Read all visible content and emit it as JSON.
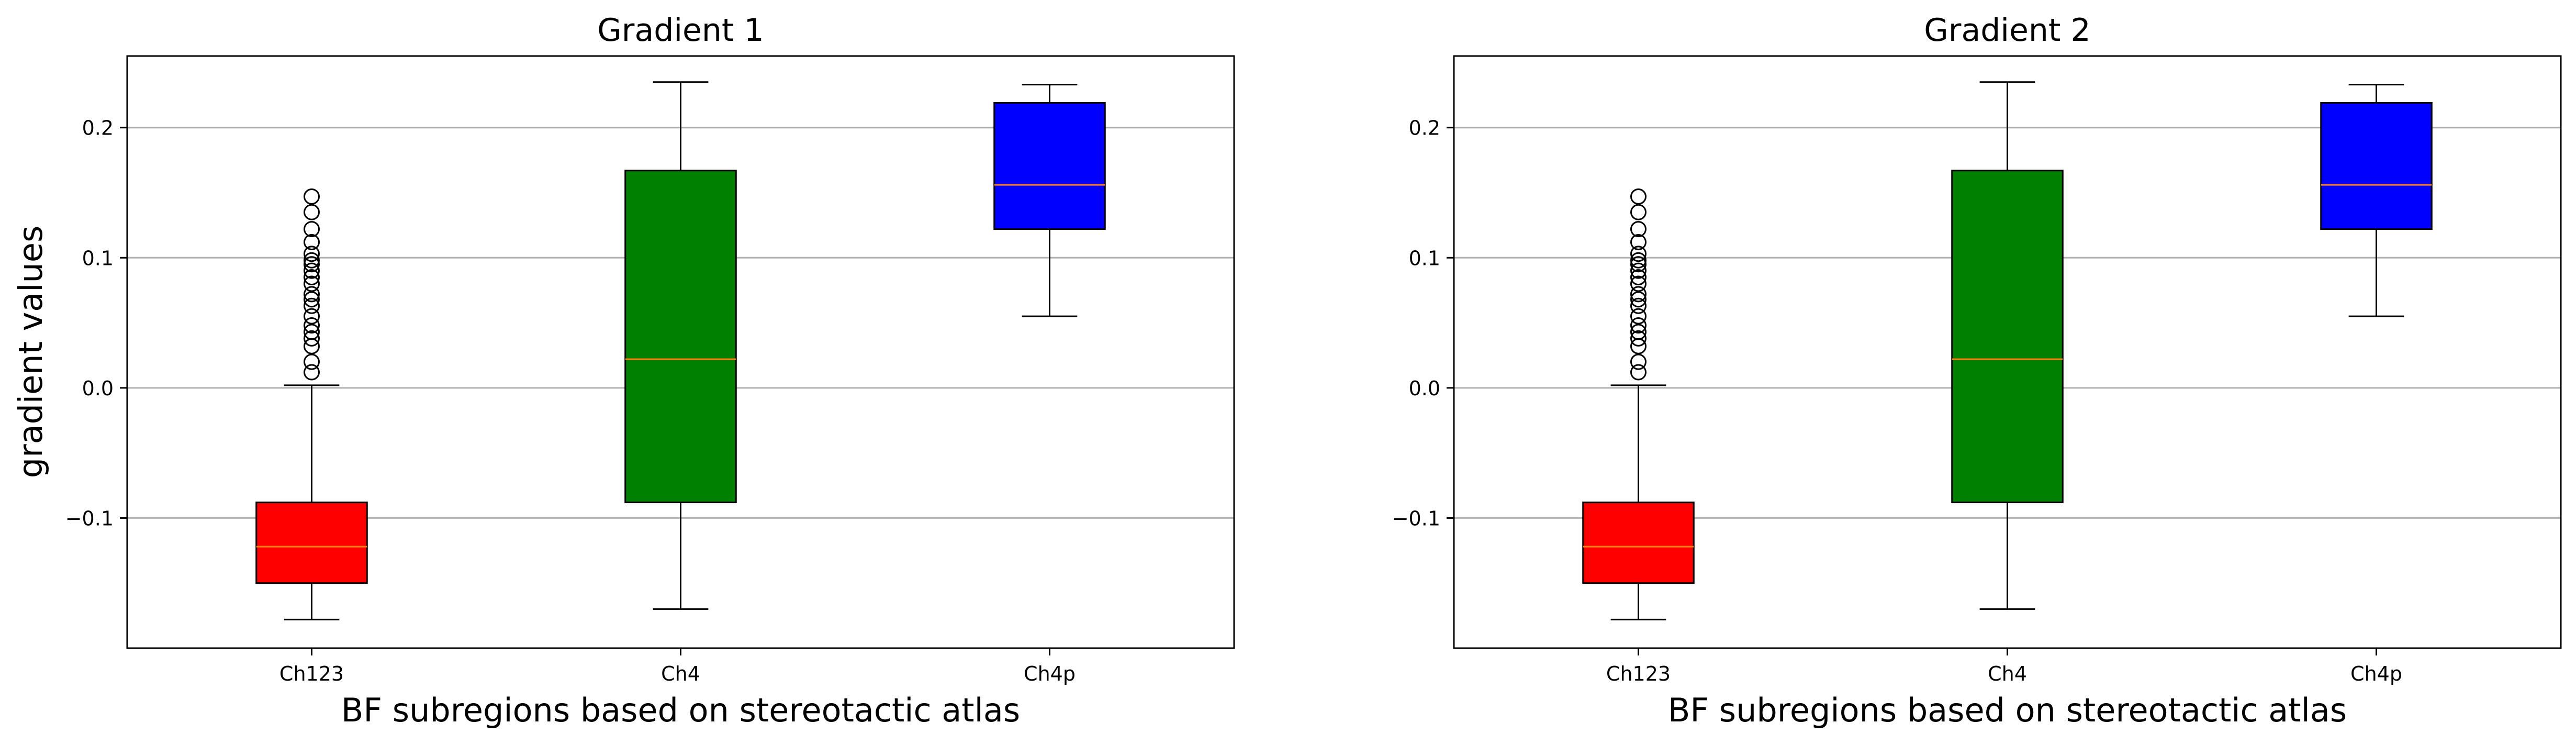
{
  "ylabel": "gradient values",
  "chart_data": [
    {
      "type": "box",
      "title": "Gradient 1",
      "xlabel": "BF subregions based on stereotactic atlas",
      "ylabel": "gradient values",
      "categories": [
        "Ch123",
        "Ch4",
        "Ch4p"
      ],
      "ylim": [
        -0.2,
        0.255
      ],
      "yticks": [
        -0.1,
        0.0,
        0.1,
        0.2
      ],
      "ytick_labels": [
        "−0.1",
        "0.0",
        "0.1",
        "0.2"
      ],
      "grid": "y",
      "boxes": [
        {
          "label": "Ch123",
          "color": "#ff0000",
          "whisker_low": -0.178,
          "q1": -0.15,
          "median": -0.122,
          "q3": -0.088,
          "whisker_high": 0.002,
          "outliers": [
            0.012,
            0.02,
            0.032,
            0.038,
            0.043,
            0.048,
            0.055,
            0.063,
            0.068,
            0.072,
            0.08,
            0.085,
            0.09,
            0.095,
            0.098,
            0.103,
            0.112,
            0.122,
            0.135,
            0.147
          ]
        },
        {
          "label": "Ch4",
          "color": "#008000",
          "whisker_low": -0.17,
          "q1": -0.088,
          "median": 0.022,
          "q3": 0.167,
          "whisker_high": 0.235,
          "outliers": []
        },
        {
          "label": "Ch4p",
          "color": "#0000ff",
          "whisker_low": 0.055,
          "q1": 0.122,
          "median": 0.156,
          "q3": 0.219,
          "whisker_high": 0.233,
          "outliers": []
        }
      ]
    },
    {
      "type": "box",
      "title": "Gradient 2",
      "xlabel": "BF subregions based on stereotactic atlas",
      "ylabel": "",
      "categories": [
        "Ch123",
        "Ch4",
        "Ch4p"
      ],
      "ylim": [
        -0.2,
        0.255
      ],
      "yticks": [
        -0.1,
        0.0,
        0.1,
        0.2
      ],
      "ytick_labels": [
        "−0.1",
        "0.0",
        "0.1",
        "0.2"
      ],
      "grid": "y",
      "boxes": [
        {
          "label": "Ch123",
          "color": "#ff0000",
          "whisker_low": -0.178,
          "q1": -0.15,
          "median": -0.122,
          "q3": -0.088,
          "whisker_high": 0.002,
          "outliers": [
            0.012,
            0.02,
            0.032,
            0.038,
            0.043,
            0.048,
            0.055,
            0.063,
            0.068,
            0.072,
            0.08,
            0.085,
            0.09,
            0.095,
            0.098,
            0.103,
            0.112,
            0.122,
            0.135,
            0.147
          ]
        },
        {
          "label": "Ch4",
          "color": "#008000",
          "whisker_low": -0.17,
          "q1": -0.088,
          "median": 0.022,
          "q3": 0.167,
          "whisker_high": 0.235,
          "outliers": []
        },
        {
          "label": "Ch4p",
          "color": "#0000ff",
          "whisker_low": 0.055,
          "q1": 0.122,
          "median": 0.156,
          "q3": 0.219,
          "whisker_high": 0.233,
          "outliers": []
        }
      ]
    }
  ],
  "style": {
    "median_color": "#ff7f0e",
    "grid_color": "#b0b0b0",
    "line_color": "#000000",
    "background": "#ffffff"
  }
}
